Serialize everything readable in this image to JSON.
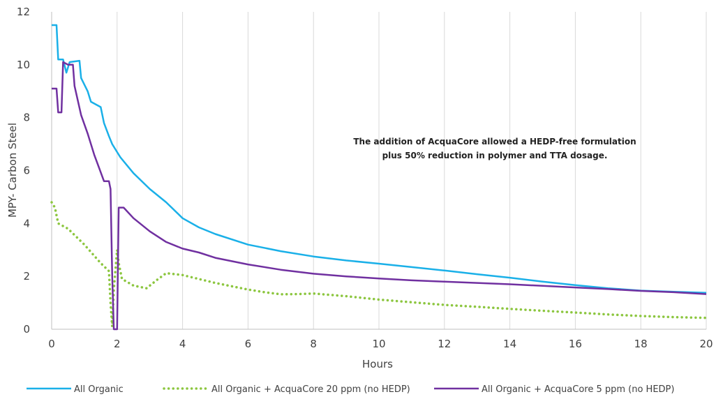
{
  "chart_data": {
    "type": "line",
    "title": "",
    "xlabel": "Hours",
    "ylabel": "MPY- Carbon Steel",
    "xlim": [
      0,
      20
    ],
    "ylim": [
      0,
      12
    ],
    "xticks": [
      0,
      2,
      4,
      6,
      8,
      10,
      12,
      14,
      16,
      18,
      20
    ],
    "yticks": [
      0,
      2,
      4,
      6,
      8,
      10,
      12
    ],
    "grid": "vertical",
    "legend_position": "bottom",
    "annotation": [
      "The addition of AcquaCore allowed a HEDP-free formulation",
      "plus 50% reduction in polymer and TTA dosage."
    ],
    "series": [
      {
        "name": "All Organic",
        "color": "#1ab0e8",
        "style": "solid",
        "points": [
          [
            0,
            11.5
          ],
          [
            0.15,
            11.5
          ],
          [
            0.2,
            10.2
          ],
          [
            0.35,
            10.2
          ],
          [
            0.45,
            9.7
          ],
          [
            0.55,
            10.1
          ],
          [
            0.85,
            10.15
          ],
          [
            0.9,
            9.5
          ],
          [
            1.1,
            9.0
          ],
          [
            1.2,
            8.6
          ],
          [
            1.5,
            8.4
          ],
          [
            1.6,
            7.8
          ],
          [
            1.75,
            7.3
          ],
          [
            1.85,
            7.0
          ],
          [
            2.0,
            6.7
          ],
          [
            2.1,
            6.5
          ],
          [
            2.3,
            6.2
          ],
          [
            2.5,
            5.9
          ],
          [
            3.0,
            5.3
          ],
          [
            3.5,
            4.8
          ],
          [
            4.0,
            4.2
          ],
          [
            4.5,
            3.85
          ],
          [
            5.0,
            3.6
          ],
          [
            6.0,
            3.2
          ],
          [
            7.0,
            2.95
          ],
          [
            8.0,
            2.75
          ],
          [
            9.0,
            2.6
          ],
          [
            10.0,
            2.48
          ],
          [
            11.0,
            2.35
          ],
          [
            12.0,
            2.22
          ],
          [
            13.0,
            2.08
          ],
          [
            14.0,
            1.95
          ],
          [
            15.0,
            1.8
          ],
          [
            16.0,
            1.67
          ],
          [
            17.0,
            1.55
          ],
          [
            18.0,
            1.46
          ],
          [
            19.0,
            1.42
          ],
          [
            20.0,
            1.38
          ]
        ]
      },
      {
        "name": "All Organic + AcquaCore 20 ppm (no HEDP)",
        "color": "#8cc63f",
        "style": "dotted",
        "points": [
          [
            0,
            4.8
          ],
          [
            0.1,
            4.6
          ],
          [
            0.2,
            4.0
          ],
          [
            0.5,
            3.8
          ],
          [
            1.0,
            3.2
          ],
          [
            1.5,
            2.5
          ],
          [
            1.75,
            2.2
          ],
          [
            1.8,
            1.0
          ],
          [
            1.85,
            0.1
          ],
          [
            1.9,
            1.5
          ],
          [
            2.0,
            3.0
          ],
          [
            2.05,
            2.5
          ],
          [
            2.15,
            1.9
          ],
          [
            2.5,
            1.65
          ],
          [
            2.9,
            1.55
          ],
          [
            3.2,
            1.85
          ],
          [
            3.5,
            2.12
          ],
          [
            4.0,
            2.05
          ],
          [
            4.5,
            1.9
          ],
          [
            5.0,
            1.75
          ],
          [
            6.0,
            1.5
          ],
          [
            6.5,
            1.4
          ],
          [
            7.0,
            1.32
          ],
          [
            7.5,
            1.33
          ],
          [
            8.0,
            1.35
          ],
          [
            9.0,
            1.25
          ],
          [
            10.0,
            1.12
          ],
          [
            11.0,
            1.02
          ],
          [
            12.0,
            0.92
          ],
          [
            13.0,
            0.85
          ],
          [
            14.0,
            0.77
          ],
          [
            15.0,
            0.7
          ],
          [
            16.0,
            0.63
          ],
          [
            17.0,
            0.56
          ],
          [
            18.0,
            0.5
          ],
          [
            19.0,
            0.46
          ],
          [
            20.0,
            0.43
          ]
        ]
      },
      {
        "name": "All Organic + AcquaCore 5 ppm (no HEDP)",
        "color": "#7030a0",
        "style": "solid",
        "points": [
          [
            0,
            9.1
          ],
          [
            0.15,
            9.1
          ],
          [
            0.2,
            8.2
          ],
          [
            0.3,
            8.2
          ],
          [
            0.35,
            10.1
          ],
          [
            0.5,
            10.0
          ],
          [
            0.55,
            10.0
          ],
          [
            0.65,
            10.0
          ],
          [
            0.7,
            9.2
          ],
          [
            0.9,
            8.1
          ],
          [
            1.1,
            7.4
          ],
          [
            1.3,
            6.6
          ],
          [
            1.45,
            6.1
          ],
          [
            1.6,
            5.6
          ],
          [
            1.75,
            5.6
          ],
          [
            1.8,
            5.3
          ],
          [
            1.85,
            2.0
          ],
          [
            1.9,
            0
          ],
          [
            2.0,
            0
          ],
          [
            2.05,
            4.6
          ],
          [
            2.2,
            4.6
          ],
          [
            2.5,
            4.2
          ],
          [
            3.0,
            3.7
          ],
          [
            3.5,
            3.3
          ],
          [
            4.0,
            3.05
          ],
          [
            4.5,
            2.9
          ],
          [
            5.0,
            2.7
          ],
          [
            6.0,
            2.45
          ],
          [
            7.0,
            2.25
          ],
          [
            8.0,
            2.1
          ],
          [
            9.0,
            2.0
          ],
          [
            10.0,
            1.92
          ],
          [
            11.0,
            1.85
          ],
          [
            12.0,
            1.8
          ],
          [
            13.0,
            1.75
          ],
          [
            14.0,
            1.7
          ],
          [
            15.0,
            1.64
          ],
          [
            16.0,
            1.58
          ],
          [
            17.0,
            1.52
          ],
          [
            18.0,
            1.45
          ],
          [
            19.0,
            1.4
          ],
          [
            20.0,
            1.33
          ]
        ]
      }
    ]
  }
}
